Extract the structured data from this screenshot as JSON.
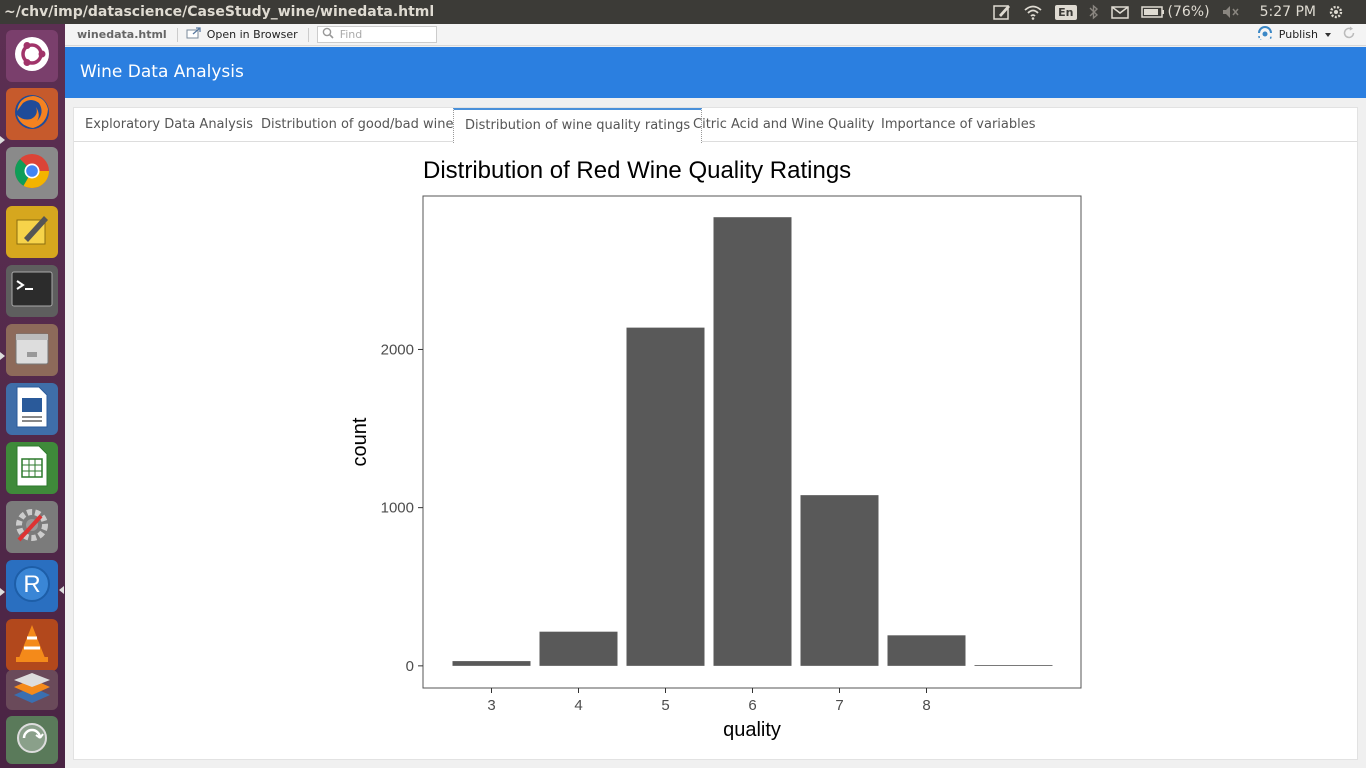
{
  "system_bar": {
    "window_title": "~/chv/imp/datascience/CaseStudy_wine/winedata.html",
    "keyboard_layout": "En",
    "battery": "(76%)",
    "clock": "5:27 PM"
  },
  "viewer_toolbar": {
    "file_name": "winedata.html",
    "open_in_browser": "Open in Browser",
    "find_placeholder": "Find",
    "publish": "Publish"
  },
  "app": {
    "title": "Wine Data Analysis",
    "accent_color": "#2b7fe0"
  },
  "tabs": [
    {
      "label": "Exploratory Data Analysis",
      "active": false
    },
    {
      "label": "Distribution of good/bad wine",
      "active": false
    },
    {
      "label": "Distribution of wine quality ratings",
      "active": true
    },
    {
      "label": "Citric Acid and Wine Quality",
      "active": false
    },
    {
      "label": "Importance of variables",
      "active": false
    }
  ],
  "launcher": {
    "apps": [
      "ubuntu-icon",
      "firefox-icon",
      "chrome-icon",
      "text-editor-icon",
      "terminal-icon",
      "files-icon",
      "writer-icon",
      "calc-icon",
      "settings-icon",
      "r-icon",
      "vlc-icon",
      "stack-icon",
      "trash-icon"
    ]
  },
  "chart_data": {
    "type": "bar",
    "title": "Distribution of Red Wine Quality Ratings",
    "xlabel": "quality",
    "ylabel": "count",
    "categories": [
      "3",
      "4",
      "5",
      "6",
      "7",
      "8",
      ""
    ],
    "values": [
      30,
      216,
      2138,
      2836,
      1079,
      193,
      5
    ],
    "x_tick_labels": [
      "3",
      "4",
      "5",
      "6",
      "7",
      "8"
    ],
    "y_ticks": [
      0,
      1000,
      2000
    ],
    "ylim": [
      -140,
      2970
    ],
    "bar_color": "#595959",
    "grid": false
  }
}
